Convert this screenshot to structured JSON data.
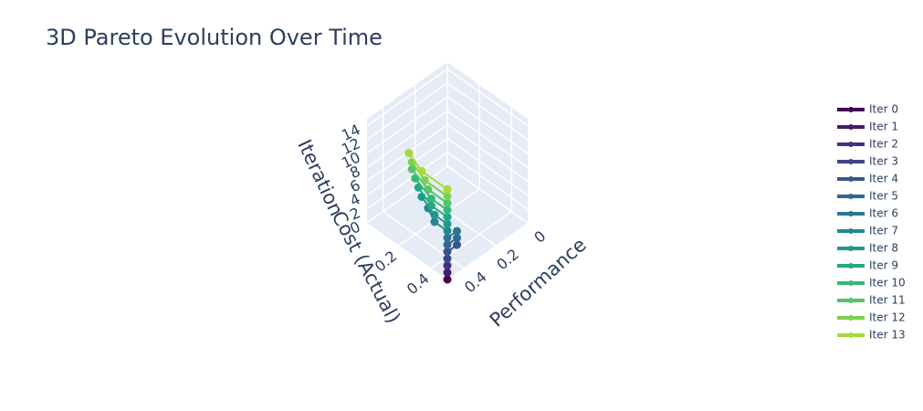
{
  "chart_data": {
    "type": "scatter3d",
    "title": "3D Pareto Evolution Over Time",
    "x_label": "Cost (Actual)",
    "y_label": "Performance",
    "z_label": "Iteration",
    "xlim": [
      0,
      0.5
    ],
    "xticks": [
      0.2,
      0.4
    ],
    "ylim": [
      0,
      0.5
    ],
    "yticks": [
      0,
      0.2,
      0.4
    ],
    "zlim": [
      0,
      15
    ],
    "zticks": [
      0,
      2,
      4,
      6,
      8,
      10,
      12,
      14
    ],
    "series": [
      {
        "name": "Iter 0",
        "color": "#440154",
        "x": [
          0.5
        ],
        "y": [
          0.5
        ],
        "z": [
          0
        ]
      },
      {
        "name": "Iter 1",
        "color": "#481a6c",
        "x": [
          0.5
        ],
        "y": [
          0.5
        ],
        "z": [
          1
        ]
      },
      {
        "name": "Iter 2",
        "color": "#472f7d",
        "x": [
          0.5
        ],
        "y": [
          0.5
        ],
        "z": [
          2
        ]
      },
      {
        "name": "Iter 3",
        "color": "#414487",
        "x": [
          0.5
        ],
        "y": [
          0.5
        ],
        "z": [
          3
        ]
      },
      {
        "name": "Iter 4",
        "color": "#39568c",
        "x": [
          0.5,
          0.5
        ],
        "y": [
          0.5,
          0.44
        ],
        "z": [
          4,
          4
        ]
      },
      {
        "name": "Iter 5",
        "color": "#31688e",
        "x": [
          0.5,
          0.5
        ],
        "y": [
          0.5,
          0.44
        ],
        "z": [
          5,
          5
        ]
      },
      {
        "name": "Iter 6",
        "color": "#2a788e",
        "x": [
          0.5,
          0.5
        ],
        "y": [
          0.5,
          0.44
        ],
        "z": [
          6,
          6
        ]
      },
      {
        "name": "Iter 7",
        "color": "#23888e",
        "x": [
          0.5,
          0.42,
          0.34
        ],
        "y": [
          0.5,
          0.5,
          0.46
        ],
        "z": [
          7,
          7,
          7
        ]
      },
      {
        "name": "Iter 8",
        "color": "#1f988b",
        "x": [
          0.5,
          0.42,
          0.3
        ],
        "y": [
          0.5,
          0.5,
          0.46
        ],
        "z": [
          8,
          8,
          8
        ]
      },
      {
        "name": "Iter 9",
        "color": "#22a884",
        "x": [
          0.5,
          0.4,
          0.28
        ],
        "y": [
          0.5,
          0.5,
          0.46
        ],
        "z": [
          9,
          9,
          9
        ]
      },
      {
        "name": "Iter 10",
        "color": "#35b779",
        "x": [
          0.5,
          0.4,
          0.26
        ],
        "y": [
          0.5,
          0.5,
          0.46
        ],
        "z": [
          10,
          10,
          10
        ]
      },
      {
        "name": "Iter 11",
        "color": "#54c568",
        "x": [
          0.5,
          0.38,
          0.24
        ],
        "y": [
          0.5,
          0.5,
          0.46
        ],
        "z": [
          11,
          11,
          11
        ]
      },
      {
        "name": "Iter 12",
        "color": "#7ad151",
        "x": [
          0.5,
          0.36,
          0.24
        ],
        "y": [
          0.5,
          0.5,
          0.46
        ],
        "z": [
          12,
          12,
          12
        ]
      },
      {
        "name": "Iter 13",
        "color": "#a5db36",
        "x": [
          0.5,
          0.34,
          0.22
        ],
        "y": [
          0.5,
          0.5,
          0.46
        ],
        "z": [
          13,
          13,
          13
        ]
      }
    ]
  }
}
